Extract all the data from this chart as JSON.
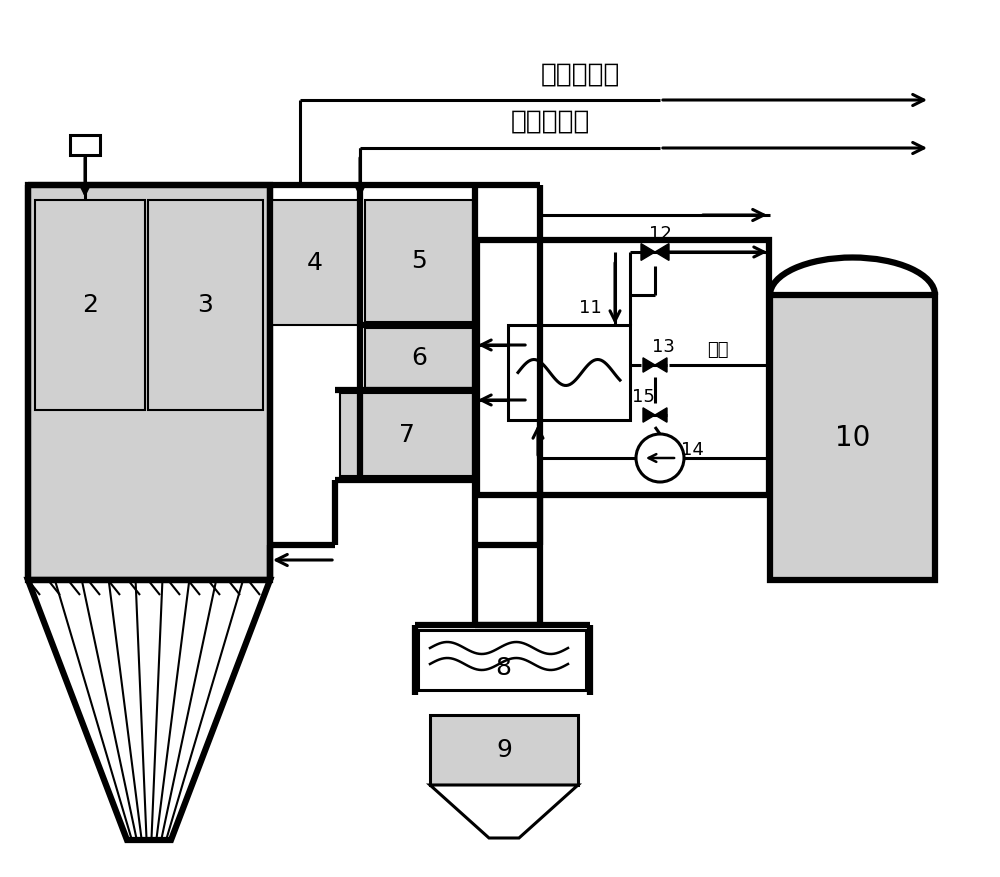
{
  "bg": "#ffffff",
  "lc": "#000000",
  "gray": "#d0d0d0",
  "lw_thick": 4.5,
  "lw_med": 2.2,
  "lw_thin": 1.5,
  "fs_large": 18,
  "fs_med": 15,
  "fs_small": 13,
  "label_super": "过热譒汽出",
  "label_reheat": "再热譒汽出",
  "label_gishui": "给水"
}
